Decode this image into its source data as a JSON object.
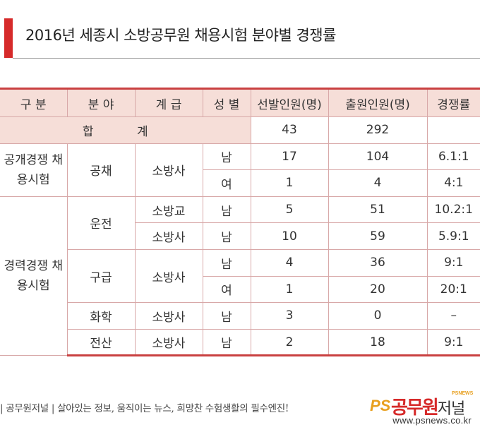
{
  "title": "2016년 세종시 소방공무원 채용시험 분야별 경쟁률",
  "table": {
    "headers": [
      "구 분",
      "분 야",
      "계 급",
      "성 별",
      "선발인원(명)",
      "출원인원(명)",
      "경쟁률"
    ],
    "total": {
      "label": "합 계",
      "selected": "43",
      "applicants": "292",
      "ratio": ""
    },
    "groups": {
      "open": "공개경쟁 채용시험",
      "career": "경력경쟁 채용시험"
    },
    "fields": {
      "gongchae": "공채",
      "unjeon": "운전",
      "gugeup": "구급",
      "hwahak": "화학",
      "jeonsan": "전산"
    },
    "ranks": {
      "sobangsa": "소방사",
      "sobanggyo": "소방교"
    },
    "genders": {
      "male": "남",
      "female": "여"
    },
    "rows": [
      {
        "selected": "17",
        "applicants": "104",
        "ratio": "6.1:1"
      },
      {
        "selected": "1",
        "applicants": "4",
        "ratio": "4:1"
      },
      {
        "selected": "5",
        "applicants": "51",
        "ratio": "10.2:1"
      },
      {
        "selected": "10",
        "applicants": "59",
        "ratio": "5.9:1"
      },
      {
        "selected": "4",
        "applicants": "36",
        "ratio": "9:1"
      },
      {
        "selected": "1",
        "applicants": "20",
        "ratio": "20:1"
      },
      {
        "selected": "3",
        "applicants": "0",
        "ratio": "–"
      },
      {
        "selected": "2",
        "applicants": "18",
        "ratio": "9:1"
      }
    ]
  },
  "footer": {
    "slogan": "| 공무원저널 | 살아있는 정보, 움직이는 뉴스, 희망찬 수험생활의 필수엔진!",
    "logo_ps": "PS",
    "logo_main": "공무원",
    "logo_sub": "저널",
    "logo_tag": "PSNEWS",
    "url": "www.psnews.co.kr",
    "brand_color": "#d62a2a"
  }
}
